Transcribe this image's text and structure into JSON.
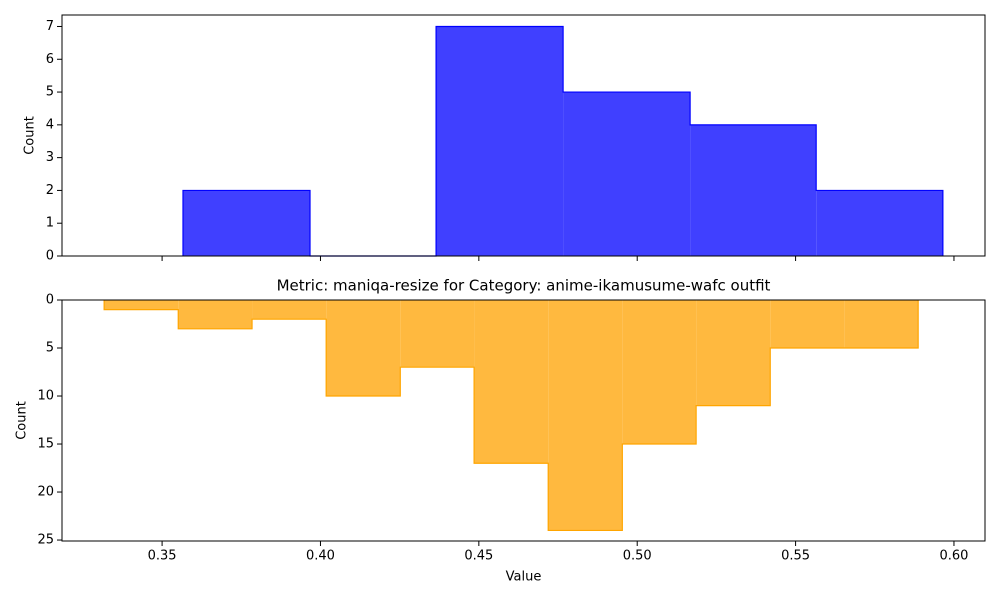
{
  "chart_data": [
    {
      "type": "histogram",
      "ylabel": "Count",
      "bins": [
        0.3566,
        0.3967,
        0.4365,
        0.4766,
        0.5167,
        0.5565,
        0.5965
      ],
      "values": [
        2,
        0,
        7,
        5,
        4,
        2
      ],
      "color": "#4040ff",
      "edgecolor": "#0000ff",
      "xlim": [
        0.3184,
        0.6098
      ],
      "ylim": [
        0,
        7.35
      ],
      "xticks": [
        0.35,
        0.4,
        0.45,
        0.5,
        0.55,
        0.6
      ],
      "yticks": [
        0,
        1,
        2,
        3,
        4,
        5,
        6,
        7
      ]
    },
    {
      "type": "histogram",
      "title": "Metric: maniqa-resize for Category: anime-ikamusume-wafc outfit",
      "xlabel": "Value",
      "ylabel": "Count",
      "bins": [
        0.3317,
        0.3551,
        0.3784,
        0.4018,
        0.4252,
        0.4485,
        0.4719,
        0.4953,
        0.5186,
        0.542,
        0.5654,
        0.5887
      ],
      "values": [
        1,
        3,
        2,
        10,
        7,
        17,
        24,
        15,
        11,
        5,
        5
      ],
      "color": "#ffb93f",
      "edgecolor": "#ffa500",
      "xlim": [
        0.3184,
        0.6098
      ],
      "ylim": [
        0,
        25.1
      ],
      "inverted": true,
      "xticks": [
        0.35,
        {
          "value": 0.4,
          "label": "0.40"
        },
        0.45,
        {
          "value": 0.5,
          "label": "0.50"
        },
        0.55,
        {
          "value": 0.6,
          "label": "0.60"
        }
      ],
      "yticks": [
        0,
        5,
        10,
        15,
        20,
        25
      ]
    }
  ]
}
